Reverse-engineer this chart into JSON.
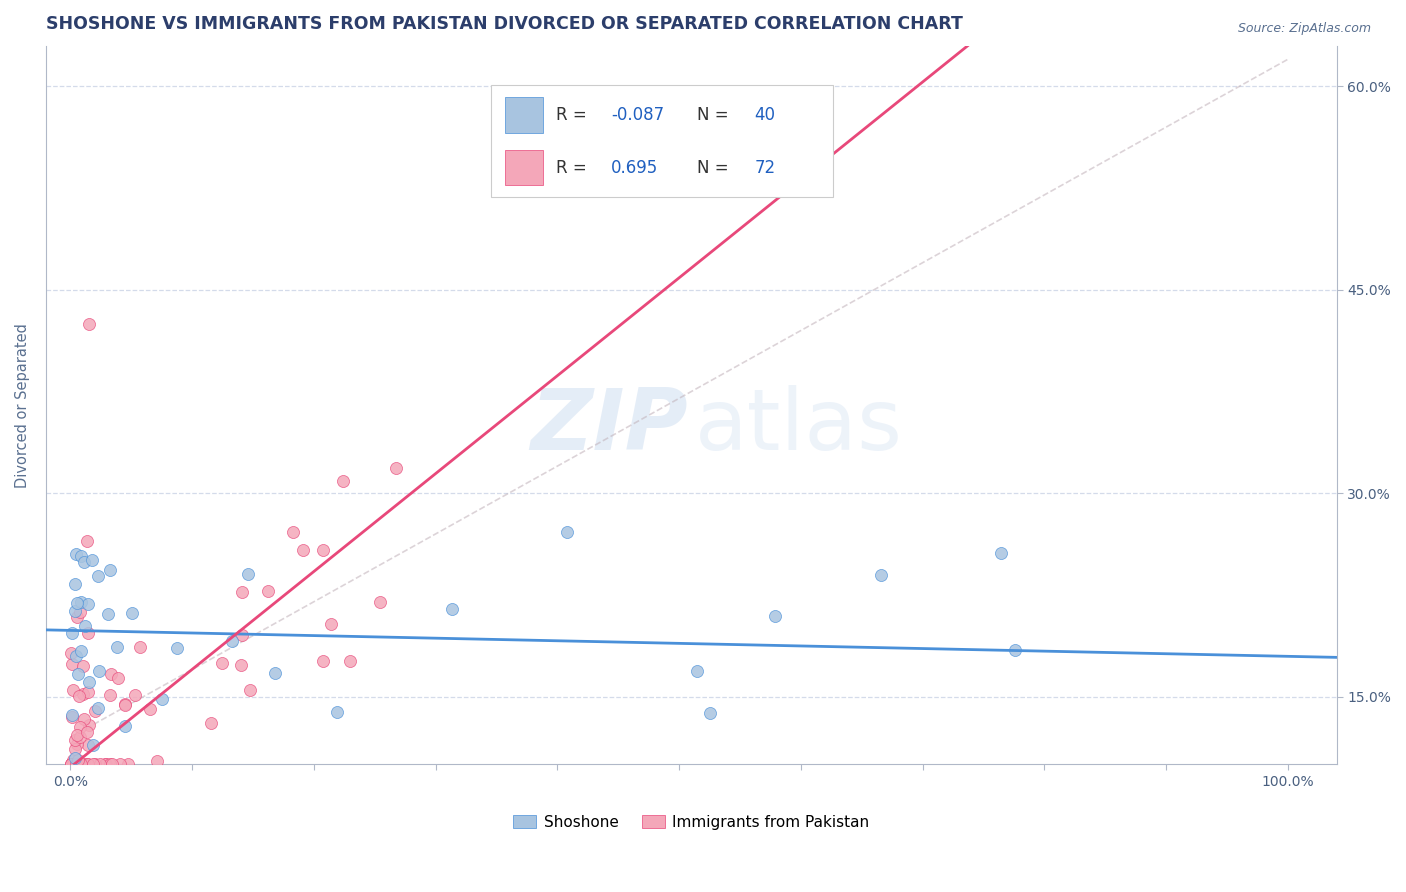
{
  "title": "SHOSHONE VS IMMIGRANTS FROM PAKISTAN DIVORCED OR SEPARATED CORRELATION CHART",
  "source": "Source: ZipAtlas.com",
  "ylabel": "Divorced or Separated",
  "xlim": [
    0,
    100
  ],
  "ylim": [
    10,
    63
  ],
  "y_ticks": [
    15,
    30,
    45,
    60
  ],
  "y_tick_labels": [
    "15.0%",
    "30.0%",
    "45.0%",
    "60.0%"
  ],
  "legend_R1": "-0.087",
  "legend_N1": "40",
  "legend_R2": "0.695",
  "legend_N2": "72",
  "color_shoshone_fill": "#a8c4e0",
  "color_shoshone_edge": "#4a90d9",
  "color_pakistan_fill": "#f4a7b9",
  "color_pakistan_edge": "#e8487a",
  "color_line_shoshone": "#4a90d9",
  "color_line_pakistan": "#e8487a",
  "color_trend_line": "#c0b0b8",
  "background_color": "#ffffff",
  "grid_color": "#d0d8e8",
  "R1": -0.087,
  "R2": 0.695,
  "N1": 40,
  "N2": 72
}
